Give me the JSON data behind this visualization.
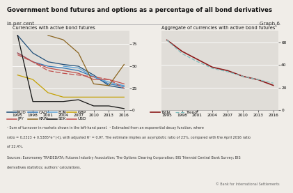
{
  "title": "Government bond futures and options as a percentage of all bond derivatives",
  "subtitle": "In per cent",
  "graph_label": "Graph 6",
  "bg_color": "#f0ede8",
  "panel_bg": "#e0ddd8",
  "years": [
    1995,
    1998,
    2001,
    2004,
    2007,
    2010,
    2013,
    2016
  ],
  "left_title": "Currencies with active bond futures",
  "right_title": "Aggregate of currencies with active bond futures¹",
  "left_ylim": [
    0,
    90
  ],
  "left_yticks": [
    0,
    25,
    50,
    75
  ],
  "right_ylim": [
    0,
    70
  ],
  "right_yticks": [
    0,
    20,
    40,
    60
  ],
  "AUD": [
    85,
    65,
    55,
    52,
    50,
    40,
    28,
    25
  ],
  "CAD": [
    65,
    55,
    50,
    48,
    45,
    38,
    30,
    27
  ],
  "EUR": [
    null,
    null,
    null,
    50,
    48,
    38,
    32,
    28
  ],
  "GBP": [
    40,
    35,
    20,
    15,
    15,
    15,
    15,
    15
  ],
  "JPY": [
    65,
    55,
    48,
    45,
    42,
    35,
    35,
    30
  ],
  "KRW": [
    null,
    null,
    85,
    80,
    65,
    30,
    28,
    52
  ],
  "SEK": [
    85,
    10,
    10,
    10,
    12,
    5,
    5,
    2
  ],
  "USD": [
    63,
    55,
    45,
    42,
    40,
    38,
    35,
    25
  ],
  "Total": [
    62,
    52,
    45,
    38,
    35,
    30,
    27,
    22
  ],
  "Trend": [
    62,
    50,
    43,
    37,
    34,
    30,
    27,
    24
  ],
  "AUD_color": "#1f4e79",
  "CAD_color": "#2e75b6",
  "EUR_color": "#5ba3d9",
  "GBP_color": "#c4a000",
  "JPY_color": "#c0504d",
  "KRW_color": "#8b6520",
  "SEK_color": "#111111",
  "USD_color": "#c0504d",
  "Total_color": "#8b1a1a",
  "Trend_color": "#7fbfbf",
  "fn1": "¹ Sum of turnover in markets shown in the left-hand panel.  ² Estimated from an exponential decay function, where",
  "fn2": "ratio = 0.2323 + 0.5385*e^(-t), with adjusted R² = 0.97. The estimate implies an asymptotic ratio of 23%, compared with the April 2016 ratio",
  "fn3": "of 22.4%.",
  "src1": "Sources: Euromoney TRADEDATA; Futures Industry Association; The Options Clearing Corporation; BIS Triennial Central Bank Survey; BIS",
  "src2": "derivatives statistics; authors' calculations.",
  "copyright": "© Bank for International Settlements"
}
